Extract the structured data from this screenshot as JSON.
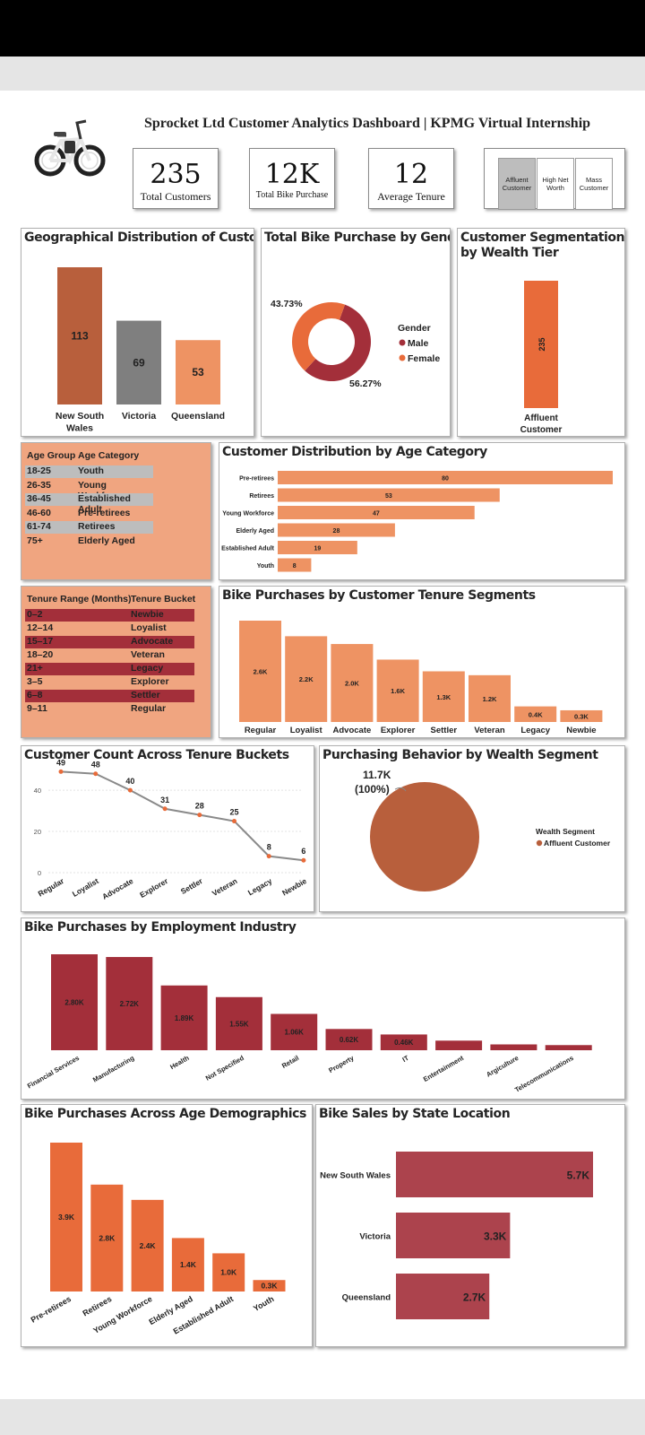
{
  "header": {
    "title": "Sprocket Ltd Customer Analytics Dashboard | KPMG Virtual Internship"
  },
  "kpis": [
    {
      "value": "235",
      "label": "Total Customers"
    },
    {
      "value": "12K",
      "label": "Total Bike Purchase"
    },
    {
      "value": "12",
      "label": "Average Tenure"
    }
  ],
  "slicer": {
    "options": [
      "Affluent Customer",
      "High Net Worth",
      "Mass Customer"
    ],
    "selected": "Affluent Customer"
  },
  "age_table": {
    "headers": [
      "Age Group",
      "Age Category"
    ],
    "rows": [
      [
        "18-25",
        "Youth"
      ],
      [
        "26-35",
        "Young Workforce"
      ],
      [
        "36-45",
        "Established Adult"
      ],
      [
        "46-60",
        "Pre-retirees"
      ],
      [
        "61-74",
        "Retirees"
      ],
      [
        "75+",
        "Elderly Aged"
      ]
    ]
  },
  "tenure_table": {
    "headers": [
      "Tenure Range (Months)",
      "Tenure Bucket"
    ],
    "rows": [
      [
        "0–2",
        "Newbie"
      ],
      [
        "12–14",
        "Loyalist"
      ],
      [
        "15–17",
        "Advocate"
      ],
      [
        "18–20",
        "Veteran"
      ],
      [
        "21+",
        "Legacy"
      ],
      [
        "3–5",
        "Explorer"
      ],
      [
        "6–8",
        "Settler"
      ],
      [
        "9–11",
        "Regular"
      ]
    ]
  },
  "colors": {
    "accent": "#e86b3a",
    "maroon": "#a32f3a",
    "salmon": "#ee9363",
    "brown": "#b85f3c",
    "grey": "#7f7f7f",
    "tableBg": "#f0a580"
  },
  "chart_data": [
    {
      "id": "geo",
      "type": "bar",
      "title": "Geographical Distribution of Customers",
      "categories": [
        "New South Wales",
        "Victoria",
        "Queensland"
      ],
      "values": [
        113,
        69,
        53
      ],
      "labels": [
        "113",
        "69",
        "53"
      ]
    },
    {
      "id": "gender",
      "type": "pie",
      "title": "Total Bike Purchase by Gender",
      "legend_title": "Gender",
      "categories": [
        "Male",
        "Female"
      ],
      "values": [
        56.27,
        43.73
      ],
      "labels": [
        "56.27%",
        "43.73%"
      ]
    },
    {
      "id": "wealth_tier",
      "type": "bar",
      "title": "Customer Segmentation by Wealth Tier",
      "categories": [
        "Affluent Customer"
      ],
      "values": [
        235
      ],
      "labels": [
        "235"
      ]
    },
    {
      "id": "age_cat",
      "type": "bar",
      "title": "Customer Distribution by Age Category",
      "categories": [
        "Pre-retirees",
        "Retirees",
        "Young Workforce",
        "Elderly Aged",
        "Established Adult",
        "Youth"
      ],
      "values": [
        80,
        53,
        47,
        28,
        19,
        8
      ],
      "labels": [
        "80",
        "53",
        "47",
        "28",
        "19",
        "8"
      ]
    },
    {
      "id": "tenure_purch",
      "type": "bar",
      "title": "Bike Purchases by Customer Tenure Segments",
      "categories": [
        "Regular",
        "Loyalist",
        "Advocate",
        "Explorer",
        "Settler",
        "Veteran",
        "Legacy",
        "Newbie"
      ],
      "values": [
        2600,
        2200,
        2000,
        1600,
        1300,
        1200,
        400,
        300
      ],
      "labels": [
        "2.6K",
        "2.2K",
        "2.0K",
        "1.6K",
        "1.3K",
        "1.2K",
        "0.4K",
        "0.3K"
      ]
    },
    {
      "id": "tenure_count",
      "type": "line",
      "title": "Customer Count Across Tenure Buckets",
      "categories": [
        "Regular",
        "Loyalist",
        "Advocate",
        "Explorer",
        "Settler",
        "Veteran",
        "Legacy",
        "Newbie"
      ],
      "values": [
        49,
        48,
        40,
        31,
        28,
        25,
        8,
        6
      ],
      "labels": [
        "49",
        "48",
        "40",
        "31",
        "28",
        "25",
        "8",
        "6"
      ],
      "yticks": [
        "0",
        "20",
        "40"
      ],
      "ylim": [
        0,
        50
      ]
    },
    {
      "id": "wealth_purch",
      "type": "pie",
      "title": "Purchasing Behavior by Wealth Segment",
      "legend_title": "Wealth Segment",
      "categories": [
        "Affluent Customer"
      ],
      "values": [
        11700
      ],
      "labels": [
        "11.7K",
        "(100%)"
      ]
    },
    {
      "id": "industry",
      "type": "bar",
      "title": "Bike Purchases by Employment Industry",
      "categories": [
        "Financial Services",
        "Manufacturing",
        "Health",
        "Not Specified",
        "Retail",
        "Property",
        "IT",
        "Entertainment",
        "Argiculture",
        "Telecommunications"
      ],
      "values": [
        2800,
        2720,
        1890,
        1550,
        1060,
        620,
        460,
        280,
        170,
        150
      ],
      "labels": [
        "2.80K",
        "2.72K",
        "1.89K",
        "1.55K",
        "1.06K",
        "0.62K",
        "0.46K",
        "",
        "",
        ""
      ]
    },
    {
      "id": "age_purch",
      "type": "bar",
      "title": "Bike Purchases Across Age Demographics",
      "categories": [
        "Pre-retirees",
        "Retirees",
        "Young Workforce",
        "Elderly Aged",
        "Established Adult",
        "Youth"
      ],
      "values": [
        3900,
        2800,
        2400,
        1400,
        1000,
        300
      ],
      "labels": [
        "3.9K",
        "2.8K",
        "2.4K",
        "1.4K",
        "1.0K",
        "0.3K"
      ]
    },
    {
      "id": "state_sales",
      "type": "bar",
      "title": "Bike Sales by State Location",
      "categories": [
        "New South Wales",
        "Victoria",
        "Queensland"
      ],
      "values": [
        5700,
        3300,
        2700
      ],
      "labels": [
        "5.7K",
        "3.3K",
        "2.7K"
      ]
    }
  ]
}
